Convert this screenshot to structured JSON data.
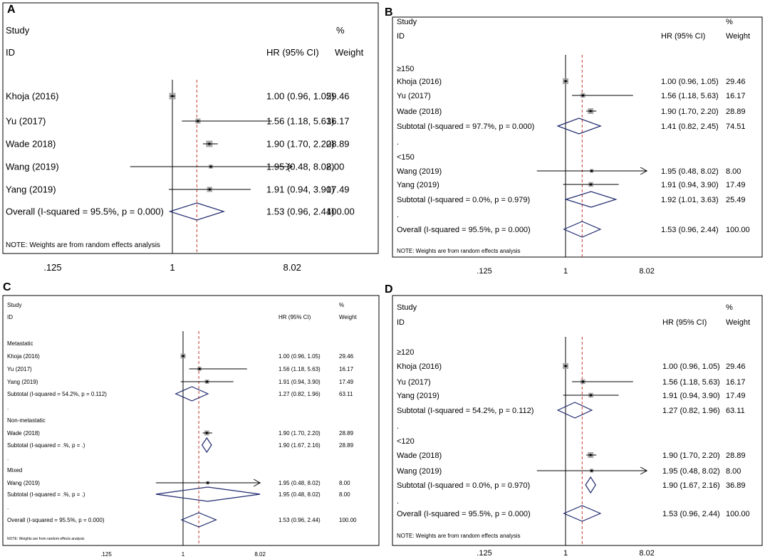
{
  "colors": {
    "frame": "#000000",
    "null_line": "#000000",
    "pooled_line": "#c0392b",
    "diamond": "#1f2a6e",
    "marker_box": "#9a9a9a"
  },
  "chart_data": [
    {
      "panel": "A",
      "type": "forest",
      "scale": "log",
      "xlim": [
        0.125,
        8.02
      ],
      "xticks": [
        0.125,
        1,
        8.02
      ],
      "xtick_labels": [
        ".125",
        "1",
        "8.02"
      ],
      "pooled_estimate": 1.53,
      "headers": {
        "study": "Study",
        "id": "ID",
        "hr": "HR (95% CI)",
        "pct": "%",
        "weight": "Weight"
      },
      "rows": [
        {
          "kind": "study",
          "label": "Khoja (2016)",
          "hr": 1.0,
          "lo": 0.96,
          "hi": 1.05,
          "ci_text": "1.00 (0.96, 1.05)",
          "weight": "29.46"
        },
        {
          "kind": "study",
          "label": "Yu (2017)",
          "hr": 1.56,
          "lo": 1.18,
          "hi": 5.63,
          "ci_text": "1.56 (1.18, 5.63)",
          "weight": "16.17"
        },
        {
          "kind": "study",
          "label": "Wade 2018)",
          "hr": 1.9,
          "lo": 1.7,
          "hi": 2.2,
          "ci_text": "1.90 (1.70, 2.20)",
          "weight": "28.89"
        },
        {
          "kind": "study",
          "label": "Wang (2019)",
          "hr": 1.95,
          "lo": 0.48,
          "hi": 8.02,
          "ci_text": "1.95 (0.48, 8.02)",
          "weight": "8.00",
          "arrow": true
        },
        {
          "kind": "study",
          "label": "Yang (2019)",
          "hr": 1.91,
          "lo": 0.94,
          "hi": 3.9,
          "ci_text": "1.91 (0.94, 3.90)",
          "weight": "17.49"
        },
        {
          "kind": "overall",
          "label": "Overall  (I-squared = 95.5%, p = 0.000)",
          "hr": 1.53,
          "lo": 0.96,
          "hi": 2.44,
          "ci_text": "1.53 (0.96, 2.44)",
          "weight": "100.00"
        }
      ],
      "note": "NOTE: Weights are from random effects analysis"
    },
    {
      "panel": "B",
      "type": "forest",
      "scale": "log",
      "xlim": [
        0.125,
        8.02
      ],
      "xticks": [
        0.125,
        1,
        8.02
      ],
      "xtick_labels": [
        ".125",
        "1",
        "8.02"
      ],
      "pooled_estimate": 1.53,
      "headers": {
        "study": "Study",
        "id": "ID",
        "hr": "HR (95% CI)",
        "pct": "%",
        "weight": "Weight"
      },
      "rows": [
        {
          "kind": "group",
          "label": "≥150"
        },
        {
          "kind": "study",
          "label": "Khoja (2016)",
          "hr": 1.0,
          "lo": 0.96,
          "hi": 1.05,
          "ci_text": "1.00 (0.96, 1.05)",
          "weight": "29.46"
        },
        {
          "kind": "study",
          "label": "Yu (2017)",
          "hr": 1.56,
          "lo": 1.18,
          "hi": 5.63,
          "ci_text": "1.56 (1.18, 5.63)",
          "weight": "16.17"
        },
        {
          "kind": "study",
          "label": "Wade (2018)",
          "hr": 1.9,
          "lo": 1.7,
          "hi": 2.2,
          "ci_text": "1.90 (1.70, 2.20)",
          "weight": "28.89"
        },
        {
          "kind": "subtotal",
          "label": "Subtotal  (I-squared = 97.7%, p = 0.000)",
          "hr": 1.41,
          "lo": 0.82,
          "hi": 2.45,
          "ci_text": "1.41 (0.82, 2.45)",
          "weight": "74.51"
        },
        {
          "kind": "dot",
          "label": "."
        },
        {
          "kind": "group",
          "label": "<150"
        },
        {
          "kind": "study",
          "label": "Wang (2019)",
          "hr": 1.95,
          "lo": 0.48,
          "hi": 8.02,
          "ci_text": "1.95 (0.48, 8.02)",
          "weight": "8.00",
          "arrow": true
        },
        {
          "kind": "study",
          "label": "Yang (2019)",
          "hr": 1.91,
          "lo": 0.94,
          "hi": 3.9,
          "ci_text": "1.91 (0.94, 3.90)",
          "weight": "17.49"
        },
        {
          "kind": "subtotal",
          "label": "Subtotal  (I-squared = 0.0%, p = 0.979)",
          "hr": 1.92,
          "lo": 1.01,
          "hi": 3.63,
          "ci_text": "1.92 (1.01, 3.63)",
          "weight": "25.49"
        },
        {
          "kind": "dot",
          "label": "."
        },
        {
          "kind": "overall",
          "label": "Overall  (I-squared = 95.5%, p = 0.000)",
          "hr": 1.53,
          "lo": 0.96,
          "hi": 2.44,
          "ci_text": "1.53 (0.96, 2.44)",
          "weight": "100.00"
        }
      ],
      "note": "NOTE: Weights are from random effects analysis"
    },
    {
      "panel": "C",
      "type": "forest",
      "scale": "log",
      "xlim": [
        0.125,
        8.02
      ],
      "xticks": [
        0.125,
        1,
        8.02
      ],
      "xtick_labels": [
        ".125",
        "1",
        "8.02"
      ],
      "pooled_estimate": 1.53,
      "headers": {
        "study": "Study",
        "id": "ID",
        "hr": "HR (95% CI)",
        "pct": "%",
        "weight": "Weight"
      },
      "rows": [
        {
          "kind": "group",
          "label": "Metastatic"
        },
        {
          "kind": "study",
          "label": "Khoja (2016)",
          "hr": 1.0,
          "lo": 0.96,
          "hi": 1.05,
          "ci_text": "1.00 (0.96, 1.05)",
          "weight": "29.46"
        },
        {
          "kind": "study",
          "label": "Yu (2017)",
          "hr": 1.56,
          "lo": 1.18,
          "hi": 5.63,
          "ci_text": "1.56 (1.18, 5.63)",
          "weight": "16.17"
        },
        {
          "kind": "study",
          "label": "Yang (2019)",
          "hr": 1.91,
          "lo": 0.94,
          "hi": 3.9,
          "ci_text": "1.91 (0.94, 3.90)",
          "weight": "17.49"
        },
        {
          "kind": "subtotal",
          "label": "Subtotal  (I-squared = 54.2%, p = 0.112)",
          "hr": 1.27,
          "lo": 0.82,
          "hi": 1.96,
          "ci_text": "1.27 (0.82, 1.96)",
          "weight": "63.11"
        },
        {
          "kind": "dot",
          "label": "."
        },
        {
          "kind": "group",
          "label": "Non-metastatic"
        },
        {
          "kind": "study",
          "label": "Wade (2018)",
          "hr": 1.9,
          "lo": 1.7,
          "hi": 2.2,
          "ci_text": "1.90 (1.70, 2.20)",
          "weight": "28.89"
        },
        {
          "kind": "subtotal",
          "label": "Subtotal  (I-squared = .%, p = .)",
          "hr": 1.9,
          "lo": 1.67,
          "hi": 2.16,
          "ci_text": "1.90 (1.67, 2.16)",
          "weight": "28.89"
        },
        {
          "kind": "dot",
          "label": "."
        },
        {
          "kind": "group",
          "label": "Mixed"
        },
        {
          "kind": "study",
          "label": "Wang (2019)",
          "hr": 1.95,
          "lo": 0.48,
          "hi": 8.02,
          "ci_text": "1.95 (0.48, 8.02)",
          "weight": "8.00",
          "arrow": true
        },
        {
          "kind": "subtotal",
          "label": "Subtotal  (I-squared = .%, p = .)",
          "hr": 1.95,
          "lo": 0.48,
          "hi": 8.02,
          "ci_text": "1.95 (0.48, 8.02)",
          "weight": "8.00"
        },
        {
          "kind": "dot",
          "label": "."
        },
        {
          "kind": "overall",
          "label": "Overall  (I-squared = 95.5%, p = 0.000)",
          "hr": 1.53,
          "lo": 0.96,
          "hi": 2.44,
          "ci_text": "1.53 (0.96, 2.44)",
          "weight": "100.00"
        }
      ],
      "note": "NOTE: Weights are from random effects analysis"
    },
    {
      "panel": "D",
      "type": "forest",
      "scale": "log",
      "xlim": [
        0.125,
        8.02
      ],
      "xticks": [
        0.125,
        1,
        8.02
      ],
      "xtick_labels": [
        ".125",
        "1",
        "8.02"
      ],
      "pooled_estimate": 1.53,
      "headers": {
        "study": "Study",
        "id": "ID",
        "hr": "HR (95% CI)",
        "pct": "%",
        "weight": "Weight"
      },
      "rows": [
        {
          "kind": "group",
          "label": "≥120"
        },
        {
          "kind": "study",
          "label": "Khoja (2016)",
          "hr": 1.0,
          "lo": 0.96,
          "hi": 1.05,
          "ci_text": "1.00 (0.96, 1.05)",
          "weight": "29.46"
        },
        {
          "kind": "study",
          "label": "Yu (2017)",
          "hr": 1.56,
          "lo": 1.18,
          "hi": 5.63,
          "ci_text": "1.56 (1.18, 5.63)",
          "weight": "16.17"
        },
        {
          "kind": "study",
          "label": "Yang (2019)",
          "hr": 1.91,
          "lo": 0.94,
          "hi": 3.9,
          "ci_text": "1.91 (0.94, 3.90)",
          "weight": "17.49"
        },
        {
          "kind": "subtotal",
          "label": "Subtotal  (I-squared = 54.2%, p = 0.112)",
          "hr": 1.27,
          "lo": 0.82,
          "hi": 1.96,
          "ci_text": "1.27 (0.82, 1.96)",
          "weight": "63.11"
        },
        {
          "kind": "dot",
          "label": "."
        },
        {
          "kind": "group",
          "label": "<120"
        },
        {
          "kind": "study",
          "label": "Wade (2018)",
          "hr": 1.9,
          "lo": 1.7,
          "hi": 2.2,
          "ci_text": "1.90 (1.70, 2.20)",
          "weight": "28.89"
        },
        {
          "kind": "study",
          "label": "Wang (2019)",
          "hr": 1.95,
          "lo": 0.48,
          "hi": 8.02,
          "ci_text": "1.95 (0.48, 8.02)",
          "weight": "8.00",
          "arrow": true
        },
        {
          "kind": "subtotal",
          "label": "Subtotal  (I-squared = 0.0%, p = 0.970)",
          "hr": 1.9,
          "lo": 1.67,
          "hi": 2.16,
          "ci_text": "1.90 (1.67, 2.16)",
          "weight": "36.89"
        },
        {
          "kind": "dot",
          "label": "."
        },
        {
          "kind": "overall",
          "label": "Overall  (I-squared = 95.5%, p = 0.000)",
          "hr": 1.53,
          "lo": 0.96,
          "hi": 2.44,
          "ci_text": "1.53 (0.96, 2.44)",
          "weight": "100.00"
        }
      ],
      "note": "NOTE: Weights are from random effects analysis"
    }
  ]
}
